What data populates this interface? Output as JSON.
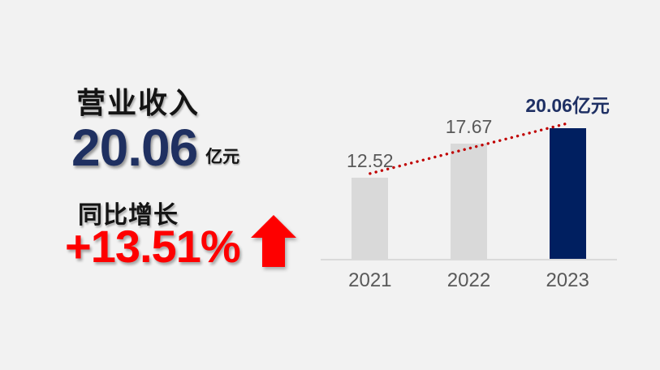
{
  "page": {
    "background": "#f2f2f2"
  },
  "left_panel": {
    "title": "营业收入",
    "title_color": "#141414",
    "value": "20.06",
    "value_color": "#1f3061",
    "unit": "亿元",
    "growth_label": "同比增长",
    "growth_label_color": "#141414",
    "growth_value": "+13.51%",
    "growth_color": "#fe0000",
    "arrow_icon": "up-arrow",
    "arrow_color": "#fe0000"
  },
  "chart_data": {
    "type": "bar",
    "title": "",
    "xlabel": "",
    "ylabel": "",
    "categories": [
      "2021",
      "2022",
      "2023"
    ],
    "values": [
      12.52,
      17.67,
      20.06
    ],
    "value_labels": [
      "12.52",
      "17.67",
      "20.06亿元"
    ],
    "ylim": [
      0,
      20.06
    ],
    "grid": false,
    "legend": false,
    "bar_colors": [
      "#d9d9d9",
      "#d9d9d9",
      "#001f60"
    ],
    "value_label_colors": [
      "#595959",
      "#595959",
      "#1f3064"
    ],
    "value_label_weights": [
      "400",
      "400",
      "700"
    ],
    "tick_label_color": "#595959",
    "axis_line_color": "#dadada",
    "trendline": {
      "style": "dotted",
      "color": "#c00000",
      "from_category": "2021",
      "to_category": "2023"
    }
  }
}
